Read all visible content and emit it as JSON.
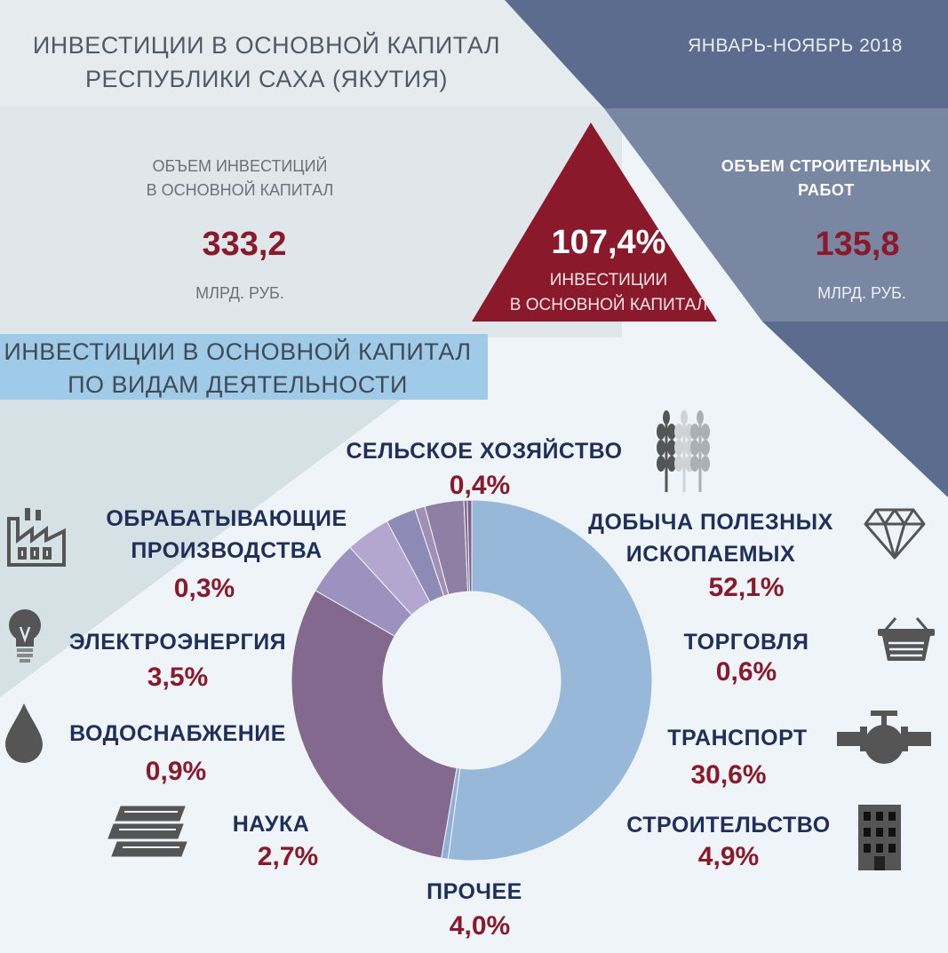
{
  "header": {
    "title_line1": "ИНВЕСТИЦИИ В ОСНОВНОЙ КАПИТАЛ",
    "title_line2": "РЕСПУБЛИКИ САХА (ЯКУТИЯ)",
    "period": "ЯНВАРЬ-НОЯБРЬ 2018"
  },
  "investments": {
    "label_line1": "ОБЪЕМ ИНВЕСТИЦИЙ",
    "label_line2": "В ОСНОВНОЙ КАПИТАЛ",
    "value": "333,2",
    "unit": "МЛРД. РУБ."
  },
  "growth": {
    "value": "107,4%",
    "label_line1": "ИНВЕСТИЦИИ",
    "label_line2": "В ОСНОВНОЙ КАПИТАЛ"
  },
  "construction": {
    "label_line1": "ОБЪЕМ СТРОИТЕЛЬНЫХ",
    "label_line2": "РАБОТ",
    "value": "135,8",
    "unit": "МЛРД. РУБ."
  },
  "section": {
    "line1": "ИНВЕСТИЦИИ В ОСНОВНОЙ КАПИТАЛ",
    "line2": "ПО ВИДАМ ДЕЯТЕЛЬНОСТИ"
  },
  "colors": {
    "accent": "#8a1a2b",
    "navy_text": "#1f2f5a",
    "banner": "#9fcae8",
    "donut_main": "#98b8da",
    "donut_transport": "#84698e"
  },
  "icons": [
    "wheat-icon",
    "factory-icon",
    "diamond-icon",
    "light-bulb-icon",
    "basket-icon",
    "water-drop-icon",
    "pipe-valve-icon",
    "books-icon",
    "building-icon"
  ],
  "chart_data": {
    "type": "pie",
    "categories": [
      "ДОБЫЧА ПОЛЕЗНЫХ ИСКОПАЕМЫХ",
      "ТОРГОВЛЯ",
      "ТРАНСПОРТ",
      "СТРОИТЕЛЬСТВО",
      "ПРОЧЕЕ",
      "НАУКА",
      "ВОДОСНАБЖЕНИЕ",
      "ЭЛЕКТРОЭНЕРГИЯ",
      "ОБРАБАТЫВАЮЩИЕ ПРОИЗВОДСТВА",
      "СЕЛЬСКОЕ ХОЗЯЙСТВО"
    ],
    "values": [
      52.1,
      0.6,
      30.6,
      4.9,
      4.0,
      2.7,
      0.9,
      3.5,
      0.3,
      0.4
    ],
    "labels": {
      "agriculture": {
        "name": "СЕЛЬСКОЕ ХОЗЯЙСТВО",
        "pct": "0,4%"
      },
      "manufacturing": {
        "line1": "ОБРАБАТЫВАЮЩИЕ",
        "line2": "ПРОИЗВОДСТВА",
        "pct": "0,3%"
      },
      "mining": {
        "line1": "ДОБЫЧА ПОЛЕЗНЫХ",
        "line2": "ИСКОПАЕМЫХ",
        "pct": "52,1%"
      },
      "energy": {
        "name": "ЭЛЕКТРОЭНЕРГИЯ",
        "pct": "3,5%"
      },
      "trade": {
        "name": "ТОРГОВЛЯ",
        "pct": "0,6%"
      },
      "water": {
        "name": "ВОДОСНАБЖЕНИЕ",
        "pct": "0,9%"
      },
      "transport": {
        "name": "ТРАНСПОРТ",
        "pct": "30,6%"
      },
      "science": {
        "name": "НАУКА",
        "pct": "2,7%"
      },
      "building": {
        "name": "СТРОИТЕЛЬСТВО",
        "pct": "4,9%"
      },
      "other": {
        "name": "ПРОЧЕЕ",
        "pct": "4,0%"
      }
    }
  }
}
